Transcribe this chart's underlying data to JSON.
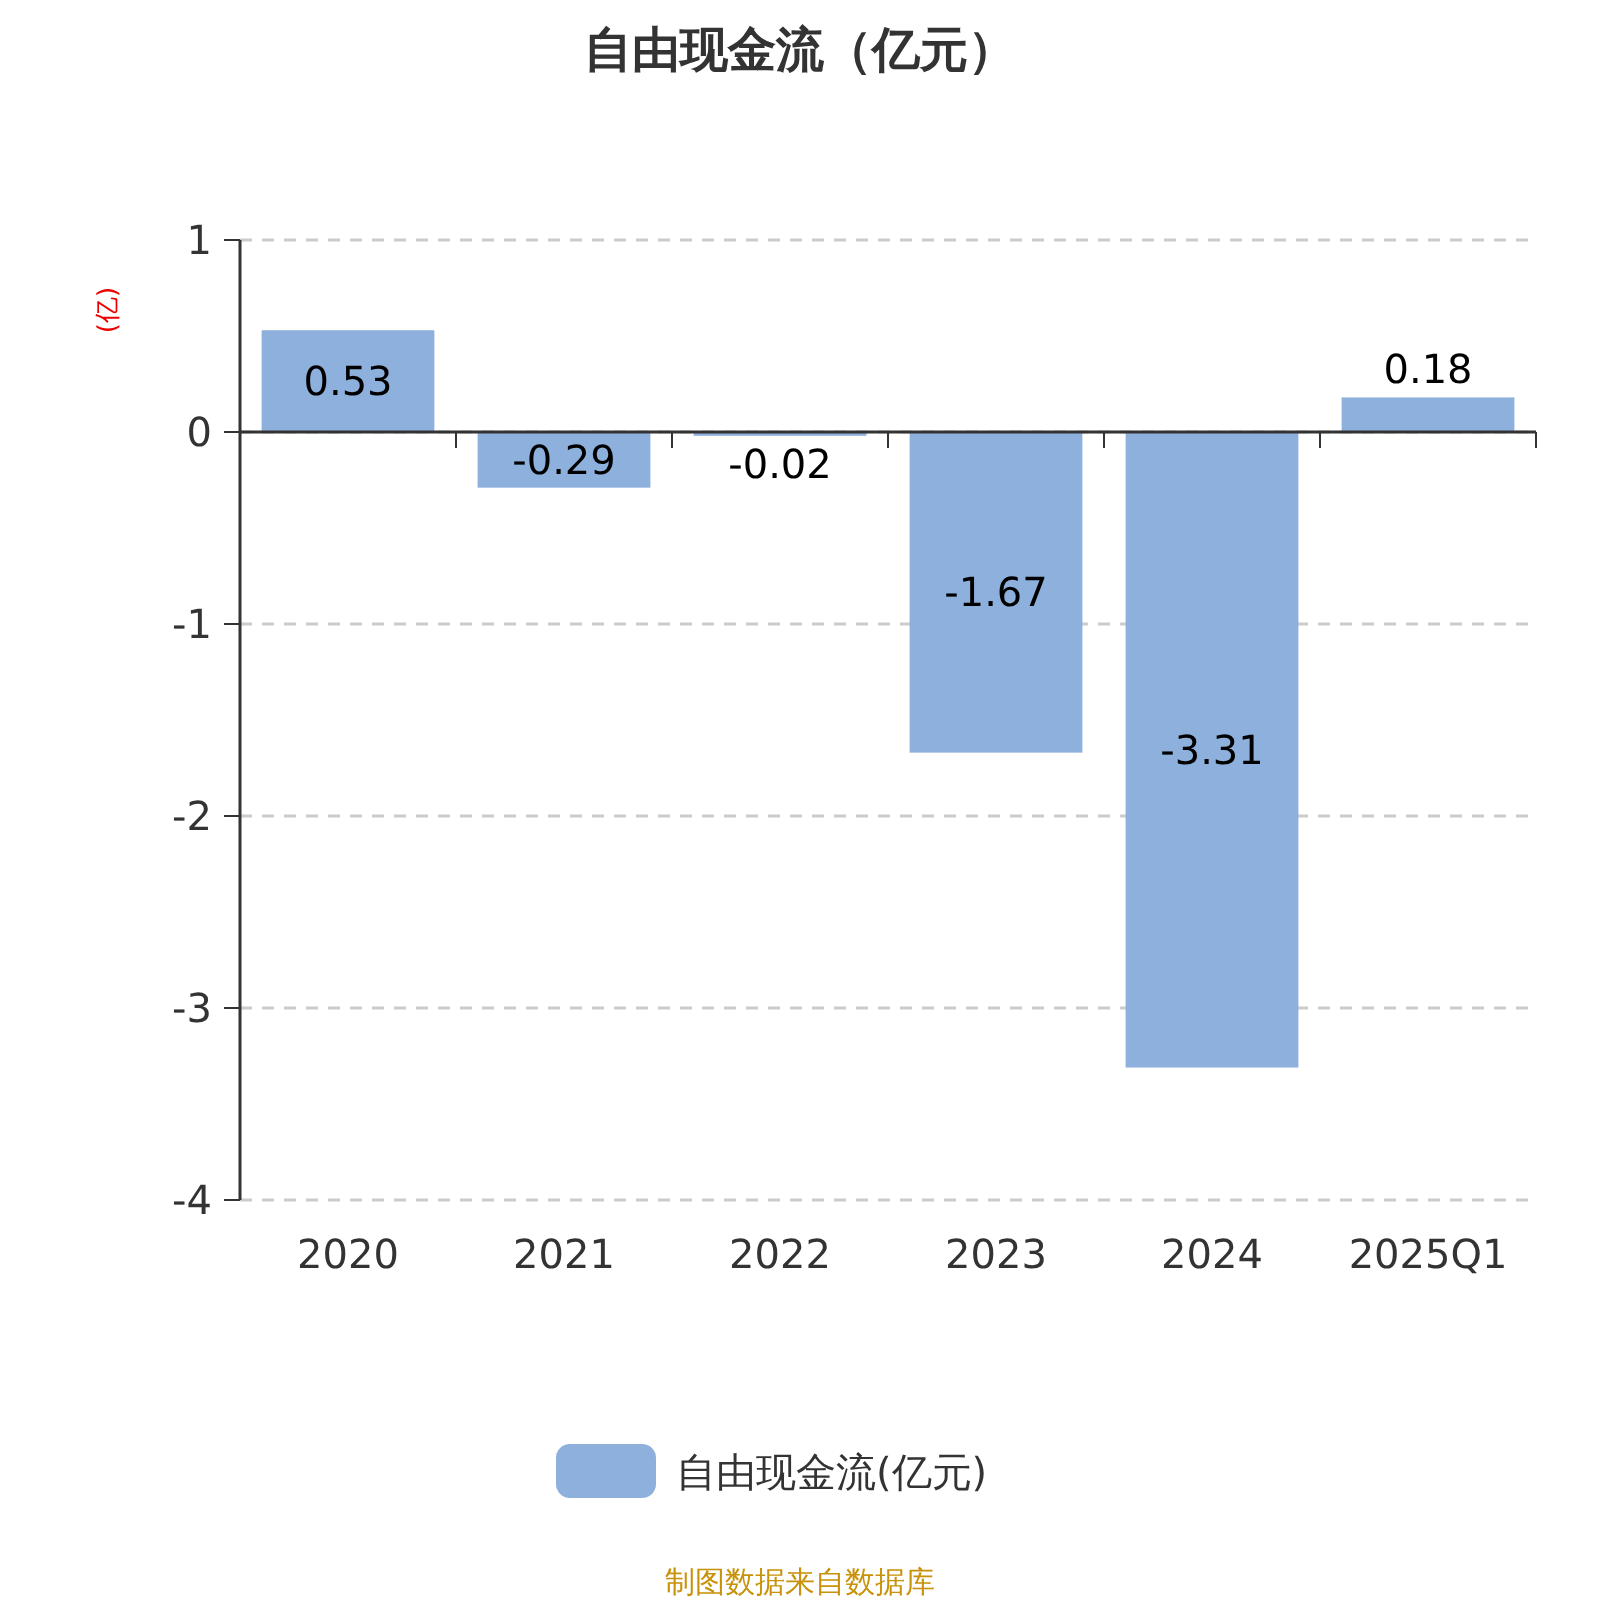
{
  "chart_data": {
    "type": "bar",
    "title": "自由现金流（亿元）",
    "ylabel": "(亿)",
    "categories": [
      "2020",
      "2021",
      "2022",
      "2023",
      "2024",
      "2025Q1"
    ],
    "series": [
      {
        "name": "自由现金流(亿元)",
        "color": "#8eb0dc",
        "values": [
          0.53,
          -0.29,
          -0.02,
          -1.67,
          -3.31,
          0.18
        ]
      }
    ],
    "ylim": [
      -4,
      1
    ],
    "yticks": [
      -4,
      -3,
      -2,
      -1,
      0,
      1
    ],
    "grid": "y",
    "legend": "bottom",
    "data_labels": true,
    "annotations": [
      "制图数据来自数据库"
    ]
  }
}
